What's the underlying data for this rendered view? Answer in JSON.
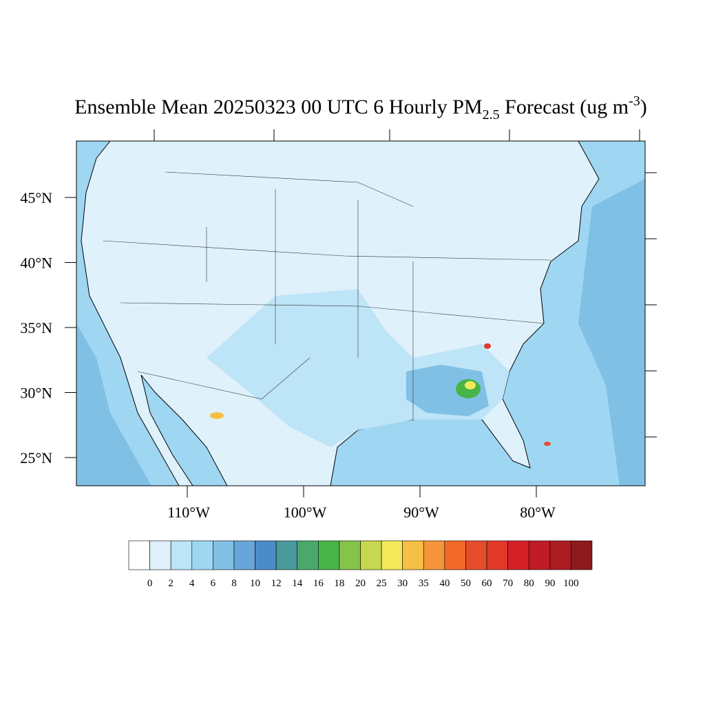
{
  "title": {
    "main": "Ensemble Mean 20250323 00 UTC 6 Hourly PM",
    "subscript": "2.5",
    "after": " Forecast (ug m",
    "superscript": "-3",
    "close": ")"
  },
  "lat_ticks": [
    {
      "value": 45,
      "label": "45°N"
    },
    {
      "value": 40,
      "label": "40°N"
    },
    {
      "value": 35,
      "label": "35°N"
    },
    {
      "value": 30,
      "label": "30°N"
    },
    {
      "value": 25,
      "label": "25°N"
    }
  ],
  "lon_ticks": [
    {
      "value": -110,
      "label": "110°W"
    },
    {
      "value": -100,
      "label": "100°W"
    },
    {
      "value": -90,
      "label": "90°W"
    },
    {
      "value": -80,
      "label": "80°W"
    }
  ],
  "colorbar": {
    "levels": [
      0,
      2,
      4,
      6,
      8,
      10,
      12,
      14,
      16,
      18,
      20,
      25,
      30,
      35,
      40,
      50,
      60,
      70,
      80,
      90,
      100
    ],
    "colors": [
      "#ffffff",
      "#dff1fb",
      "#bde4f7",
      "#9fd6f2",
      "#80c0e5",
      "#67a6d8",
      "#4a8cc8",
      "#4a9a9c",
      "#4aa86c",
      "#48b448",
      "#86c34a",
      "#c4d850",
      "#f4e85a",
      "#f6c046",
      "#f5963a",
      "#f26a28",
      "#e64d2c",
      "#e0392a",
      "#d42128",
      "#bf1c26",
      "#a81c22",
      "#8c1a1c"
    ]
  }
}
